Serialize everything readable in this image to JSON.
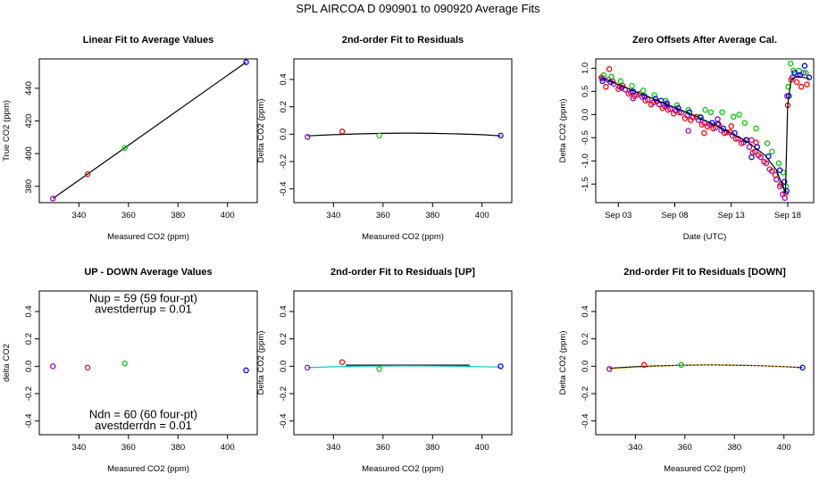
{
  "figure_title": "SPL   AIRCOA D   090901 to 090920   Average Fits",
  "chart_data": [
    {
      "type": "scatter",
      "title": "Linear Fit to Average Values",
      "xlabel": "Measured CO2 (ppm)",
      "ylabel": "True CO2 (ppm)",
      "xlim": [
        324,
        412
      ],
      "ylim": [
        370,
        458
      ],
      "xticks": [
        340,
        360,
        380,
        400
      ],
      "yticks": [
        380,
        400,
        420,
        440
      ],
      "points": [
        {
          "x": 329.5,
          "y": 372.5,
          "color": "#9900cc"
        },
        {
          "x": 343.5,
          "y": 387.5,
          "color": "#ff0000"
        },
        {
          "x": 358.5,
          "y": 403.5,
          "color": "#00cc00"
        },
        {
          "x": 407.5,
          "y": 456.0,
          "color": "#0000ff"
        }
      ],
      "lines": [
        {
          "x": [
            329.5,
            407.5
          ],
          "y": [
            372.5,
            456.0
          ],
          "color": "#000000"
        }
      ]
    },
    {
      "type": "scatter",
      "title": "2nd-order Fit to Residuals",
      "xlabel": "Measured CO2 (ppm)",
      "ylabel": "Delta CO2 (ppm)",
      "xlim": [
        324,
        412
      ],
      "ylim": [
        -0.5,
        0.55
      ],
      "xticks": [
        340,
        360,
        380,
        400
      ],
      "yticks": [
        -0.4,
        -0.2,
        0.0,
        0.2,
        0.4
      ],
      "points": [
        {
          "x": 329.5,
          "y": -0.02,
          "color": "#9900cc"
        },
        {
          "x": 343.5,
          "y": 0.02,
          "color": "#ff0000"
        },
        {
          "x": 358.5,
          "y": -0.01,
          "color": "#00cc00"
        },
        {
          "x": 407.5,
          "y": -0.01,
          "color": "#0000ff"
        }
      ],
      "lines": [
        {
          "x": [
            329.5,
            340,
            350,
            360,
            370,
            380,
            390,
            400,
            407.5
          ],
          "y": [
            -0.012,
            -0.004,
            0.002,
            0.006,
            0.008,
            0.006,
            0.002,
            -0.004,
            -0.012
          ],
          "color": "#000000"
        }
      ]
    },
    {
      "type": "scatter",
      "title": "Zero Offsets After Average Cal.",
      "xlabel": "Date (UTC)",
      "ylabel": "Delta CO2 (ppm)",
      "xlim": [
        0,
        19.3
      ],
      "ylim": [
        -1.9,
        1.2
      ],
      "xticks": [
        2,
        7,
        12,
        17
      ],
      "xticklabels": [
        "Sep 03",
        "Sep 08",
        "Sep 13",
        "Sep 18"
      ],
      "yticks": [
        -1.5,
        -1.0,
        -0.5,
        0.0,
        0.5,
        1.0
      ],
      "yticklabels": [
        "-1.5",
        "-1.0",
        "-0.5",
        "0.0",
        "0.5",
        "1.0"
      ],
      "series": [
        {
          "name": "m",
          "color": "#9900cc",
          "points": [
            [
              0.6,
              0.78
            ],
            [
              1.1,
              0.75
            ],
            [
              1.6,
              0.66
            ],
            [
              2.1,
              0.6
            ],
            [
              2.6,
              0.54
            ],
            [
              3.1,
              0.48
            ],
            [
              3.6,
              0.42
            ],
            [
              4.1,
              0.38
            ],
            [
              4.6,
              0.32
            ],
            [
              5.1,
              0.26
            ],
            [
              5.6,
              0.22
            ],
            [
              6.1,
              0.18
            ],
            [
              6.6,
              0.12
            ],
            [
              7.1,
              0.08
            ],
            [
              7.6,
              0.04
            ],
            [
              8.1,
              -0.02
            ],
            [
              8.6,
              -0.06
            ],
            [
              9.1,
              -0.12
            ],
            [
              9.6,
              -0.18
            ],
            [
              10.1,
              -0.22
            ],
            [
              10.6,
              -0.28
            ],
            [
              11.1,
              -0.34
            ],
            [
              11.6,
              -0.38
            ],
            [
              12.1,
              -0.45
            ],
            [
              12.6,
              -0.52
            ],
            [
              13.1,
              -0.6
            ],
            [
              13.6,
              -0.7
            ],
            [
              14.1,
              -0.8
            ],
            [
              14.6,
              -0.92
            ],
            [
              15.1,
              -1.05
            ],
            [
              15.6,
              -1.22
            ],
            [
              16.0,
              -1.4
            ],
            [
              16.3,
              -1.55
            ],
            [
              16.55,
              -1.72
            ],
            [
              16.75,
              -1.8
            ],
            [
              16.95,
              0.4
            ],
            [
              17.4,
              0.8
            ],
            [
              17.9,
              0.85
            ],
            [
              18.4,
              0.9
            ],
            [
              8.2,
              -0.35
            ],
            [
              3.3,
              0.35
            ],
            [
              13.8,
              -0.55
            ],
            [
              6.3,
              0.25
            ],
            [
              10.8,
              -0.1
            ]
          ]
        },
        {
          "name": "r",
          "color": "#ff0000",
          "points": [
            [
              0.5,
              0.8
            ],
            [
              0.9,
              0.6
            ],
            [
              1.2,
              0.98
            ],
            [
              1.5,
              0.72
            ],
            [
              2.0,
              0.55
            ],
            [
              2.4,
              0.62
            ],
            [
              2.9,
              0.45
            ],
            [
              3.4,
              0.4
            ],
            [
              3.9,
              0.45
            ],
            [
              4.4,
              0.3
            ],
            [
              4.9,
              0.22
            ],
            [
              5.4,
              0.28
            ],
            [
              5.9,
              0.14
            ],
            [
              6.4,
              0.1
            ],
            [
              6.9,
              0.02
            ],
            [
              7.4,
              0.05
            ],
            [
              7.9,
              -0.08
            ],
            [
              8.4,
              -0.12
            ],
            [
              8.9,
              -0.05
            ],
            [
              9.4,
              -0.22
            ],
            [
              9.9,
              -0.26
            ],
            [
              10.4,
              -0.3
            ],
            [
              10.9,
              -0.22
            ],
            [
              11.4,
              -0.4
            ],
            [
              11.9,
              -0.38
            ],
            [
              12.4,
              -0.52
            ],
            [
              12.9,
              -0.62
            ],
            [
              13.4,
              -0.55
            ],
            [
              13.9,
              -0.82
            ],
            [
              14.4,
              -0.88
            ],
            [
              14.9,
              -1.02
            ],
            [
              15.4,
              -1.18
            ],
            [
              15.9,
              -1.3
            ],
            [
              16.4,
              -1.5
            ],
            [
              16.8,
              -1.7
            ],
            [
              17.0,
              0.2
            ],
            [
              17.3,
              0.75
            ],
            [
              17.8,
              0.7
            ],
            [
              18.2,
              0.6
            ],
            [
              18.7,
              0.65
            ],
            [
              12.0,
              -0.25
            ],
            [
              9.6,
              -0.4
            ],
            [
              14.2,
              -0.6
            ]
          ]
        },
        {
          "name": "g",
          "color": "#00cc00",
          "points": [
            [
              0.7,
              0.85
            ],
            [
              1.4,
              0.82
            ],
            [
              2.2,
              0.72
            ],
            [
              3.2,
              0.62
            ],
            [
              4.2,
              0.52
            ],
            [
              5.2,
              0.42
            ],
            [
              6.2,
              0.3
            ],
            [
              7.2,
              0.2
            ],
            [
              8.2,
              0.1
            ],
            [
              9.2,
              -0.05
            ],
            [
              10.2,
              0.05
            ],
            [
              11.2,
              0.05
            ],
            [
              12.2,
              -0.05
            ],
            [
              12.7,
              0.0
            ],
            [
              13.2,
              -0.18
            ],
            [
              14.2,
              -0.3
            ],
            [
              15.2,
              -0.62
            ],
            [
              16.2,
              -1.05
            ],
            [
              16.6,
              -1.25
            ],
            [
              16.85,
              -1.55
            ],
            [
              17.05,
              0.6
            ],
            [
              17.25,
              1.1
            ],
            [
              17.5,
              0.95
            ],
            [
              18.0,
              0.95
            ],
            [
              18.6,
              0.9
            ],
            [
              9.7,
              0.1
            ],
            [
              15.6,
              -0.8
            ]
          ]
        },
        {
          "name": "b",
          "color": "#0000ff",
          "points": [
            [
              0.6,
              0.72
            ],
            [
              1.3,
              0.7
            ],
            [
              2.3,
              0.58
            ],
            [
              3.3,
              0.5
            ],
            [
              4.3,
              0.4
            ],
            [
              5.3,
              0.34
            ],
            [
              6.3,
              0.22
            ],
            [
              7.3,
              0.14
            ],
            [
              8.3,
              0.05
            ],
            [
              9.3,
              -0.06
            ],
            [
              10.3,
              -0.18
            ],
            [
              11.3,
              -0.3
            ],
            [
              12.3,
              -0.4
            ],
            [
              13.3,
              -0.55
            ],
            [
              13.8,
              -0.92
            ],
            [
              14.3,
              -0.7
            ],
            [
              15.3,
              -0.9
            ],
            [
              16.3,
              -1.2
            ],
            [
              16.7,
              -1.45
            ],
            [
              16.9,
              -1.65
            ],
            [
              17.1,
              0.4
            ],
            [
              17.6,
              0.9
            ],
            [
              18.1,
              0.85
            ],
            [
              18.5,
              1.05
            ],
            [
              18.9,
              0.8
            ],
            [
              5.8,
              0.3
            ],
            [
              10.8,
              -0.2
            ]
          ]
        }
      ],
      "lines": [
        {
          "x": [
            0.5,
            1.5,
            3,
            4.5,
            6,
            7.5,
            9,
            10.5,
            12,
            13.5,
            15,
            16,
            16.8,
            17.0,
            17.3,
            17.8,
            18.4,
            18.9
          ],
          "y": [
            0.8,
            0.7,
            0.55,
            0.4,
            0.25,
            0.1,
            -0.05,
            -0.22,
            -0.4,
            -0.6,
            -0.88,
            -1.2,
            -1.7,
            0.2,
            0.75,
            0.82,
            0.8,
            0.78
          ],
          "color": "#000000"
        }
      ]
    },
    {
      "type": "scatter",
      "title": "UP - DOWN Average Values",
      "xlabel": "Measured CO2 (ppm)",
      "ylabel": "delta CO2",
      "xlim": [
        324,
        412
      ],
      "ylim": [
        -0.5,
        0.55
      ],
      "xticks": [
        340,
        360,
        380,
        400
      ],
      "yticks": [
        -0.4,
        -0.2,
        0.0,
        0.2,
        0.4
      ],
      "points": [
        {
          "x": 329.5,
          "y": 0.0,
          "color": "#9900cc"
        },
        {
          "x": 343.5,
          "y": -0.01,
          "color": "#ff0000"
        },
        {
          "x": 358.5,
          "y": 0.02,
          "color": "#00cc00"
        },
        {
          "x": 407.5,
          "y": -0.03,
          "color": "#0000ff"
        }
      ],
      "annotations": [
        {
          "text": "Nup = 59 (59 four-pt)",
          "x": 366,
          "y": 0.47
        },
        {
          "text": "avestderrup =  0.01",
          "x": 366,
          "y": 0.39
        },
        {
          "text": "Ndn = 60 (60 four-pt)",
          "x": 366,
          "y": -0.38
        },
        {
          "text": "avestderrdn =  0.01",
          "x": 366,
          "y": -0.46
        }
      ]
    },
    {
      "type": "scatter",
      "title": "2nd-order Fit to Residuals [UP]",
      "xlabel": "Measured CO2 (ppm)",
      "ylabel": "Delta CO2 (ppm)",
      "xlim": [
        324,
        412
      ],
      "ylim": [
        -0.5,
        0.55
      ],
      "xticks": [
        340,
        360,
        380,
        400
      ],
      "yticks": [
        -0.4,
        -0.2,
        0.0,
        0.2,
        0.4
      ],
      "points": [
        {
          "x": 329.5,
          "y": -0.01,
          "color": "#9900cc"
        },
        {
          "x": 343.5,
          "y": 0.03,
          "color": "#ff0000"
        },
        {
          "x": 358.5,
          "y": -0.02,
          "color": "#00cc00"
        },
        {
          "x": 407.5,
          "y": 0.0,
          "color": "#0000ff"
        }
      ],
      "lines": [
        {
          "x": [
            345,
            395
          ],
          "y": [
            0.008,
            0.008
          ],
          "color": "#000000"
        },
        {
          "x": [
            329.5,
            340,
            350,
            360,
            370,
            380,
            390,
            400,
            407.5
          ],
          "y": [
            -0.01,
            -0.004,
            0.0,
            0.002,
            0.003,
            0.002,
            0.0,
            -0.003,
            -0.006
          ],
          "color": "#00cccc"
        }
      ]
    },
    {
      "type": "scatter",
      "title": "2nd-order Fit to Residuals [DOWN]",
      "xlabel": "Measured CO2 (ppm)",
      "ylabel": "Delta CO2 (ppm)",
      "xlim": [
        324,
        412
      ],
      "ylim": [
        -0.5,
        0.55
      ],
      "xticks": [
        340,
        360,
        380,
        400
      ],
      "yticks": [
        -0.4,
        -0.2,
        0.0,
        0.2,
        0.4
      ],
      "points": [
        {
          "x": 329.5,
          "y": -0.02,
          "color": "#9900cc"
        },
        {
          "x": 343.5,
          "y": 0.01,
          "color": "#ff0000"
        },
        {
          "x": 358.5,
          "y": 0.01,
          "color": "#00cc00"
        },
        {
          "x": 407.5,
          "y": -0.01,
          "color": "#0000ff"
        }
      ],
      "lines": [
        {
          "x": [
            329.5,
            340,
            350,
            360,
            370,
            380,
            390,
            400,
            407.5
          ],
          "y": [
            -0.015,
            -0.004,
            0.003,
            0.008,
            0.01,
            0.008,
            0.004,
            -0.003,
            -0.01
          ],
          "color": "#000000"
        },
        {
          "x": [
            329.5,
            340,
            350,
            360,
            370,
            380,
            390,
            400,
            407.5
          ],
          "y": [
            -0.02,
            -0.008,
            0.001,
            0.007,
            0.01,
            0.009,
            0.004,
            -0.004,
            -0.012
          ],
          "color": "#ffaa00",
          "dashed": true
        }
      ]
    }
  ]
}
